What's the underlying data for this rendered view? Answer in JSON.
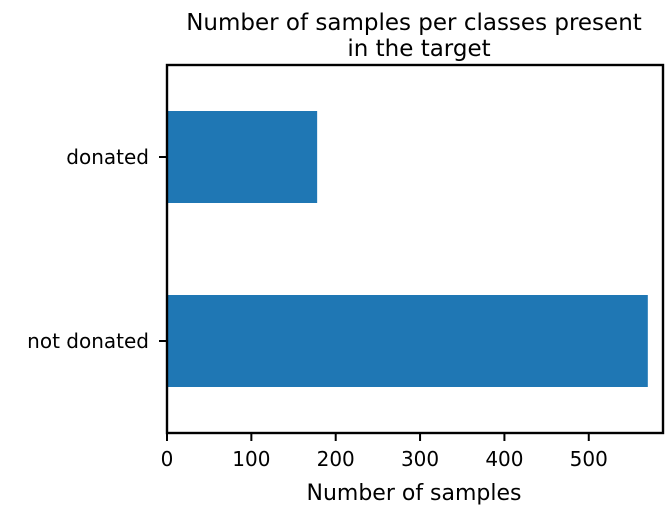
{
  "chart_data": {
    "type": "bar",
    "orientation": "horizontal",
    "title_lines": [
      "Number of samples per classes present",
      "in the target"
    ],
    "categories": [
      "not donated",
      "donated"
    ],
    "values": [
      570,
      178
    ],
    "xlabel": "Number of samples",
    "ylabel": "",
    "xlim": [
      0,
      588
    ],
    "xticks": [
      0,
      100,
      200,
      300,
      400,
      500
    ],
    "grid": false,
    "bar_color": "#1f77b4"
  }
}
